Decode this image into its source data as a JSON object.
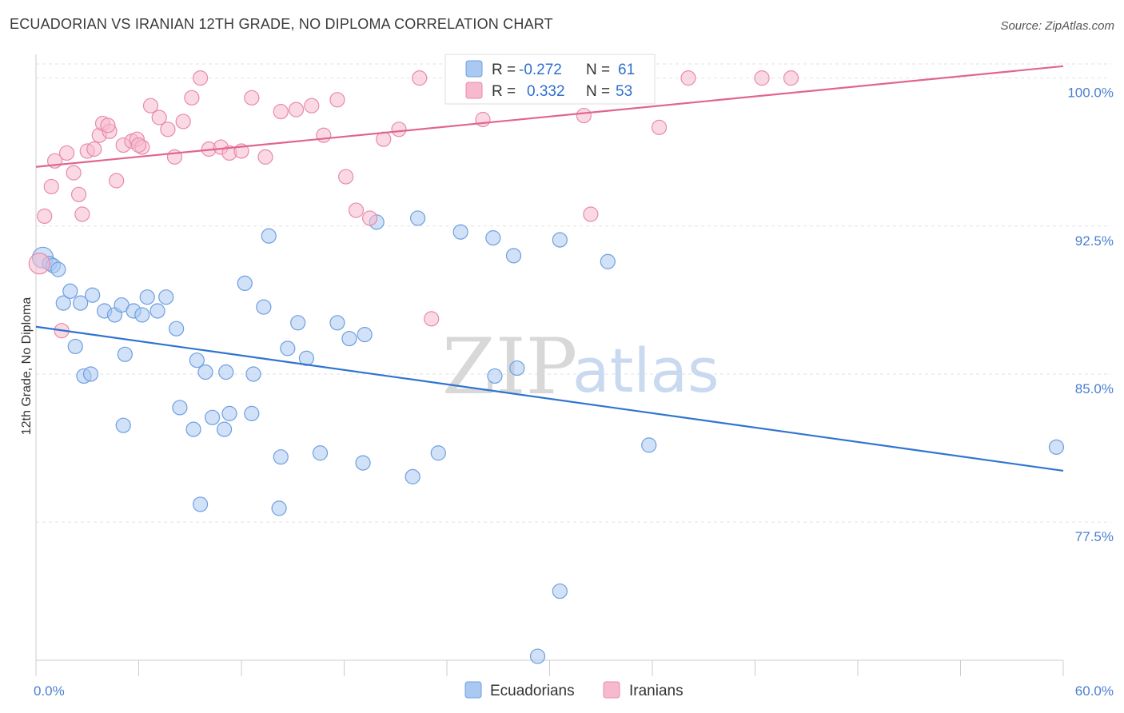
{
  "title": "ECUADORIAN VS IRANIAN 12TH GRADE, NO DIPLOMA CORRELATION CHART",
  "source": "Source: ZipAtlas.com",
  "watermark": {
    "zip": "ZIP",
    "atlas": "atlas"
  },
  "legend": {
    "rows": [
      {
        "r_label": "R =",
        "r_value": "-0.272",
        "n_label": "N =",
        "n_value": "61",
        "color": "#a9c8f2",
        "stroke": "#6f9fe0"
      },
      {
        "r_label": "R =",
        "r_value": "0.332",
        "n_label": "N =",
        "n_value": "53",
        "color": "#f6b9cd",
        "stroke": "#e88aa8"
      }
    ]
  },
  "bottom_legend": [
    {
      "label": "Ecuadorians",
      "color": "#a9c8f2",
      "stroke": "#6f9fe0"
    },
    {
      "label": "Iranians",
      "color": "#f6b9cd",
      "stroke": "#e88aa8"
    }
  ],
  "chart_data": {
    "type": "scatter",
    "title": "ECUADORIAN VS IRANIAN 12TH GRADE, NO DIPLOMA CORRELATION CHART",
    "xlabel": "",
    "ylabel": "12th Grade, No Diploma",
    "xlim": [
      0,
      60
    ],
    "ylim": [
      70.5,
      101.2
    ],
    "x_tick_labels": [
      {
        "value": 0,
        "label": "0.0%"
      },
      {
        "value": 60,
        "label": "60.0%"
      }
    ],
    "y_tick_labels": [
      {
        "value": 100,
        "label": "100.0%"
      },
      {
        "value": 92.5,
        "label": "92.5%"
      },
      {
        "value": 85,
        "label": "85.0%"
      },
      {
        "value": 77.5,
        "label": "77.5%"
      }
    ],
    "grid": true,
    "series": [
      {
        "name": "Ecuadorians",
        "color": "#a9c8f2",
        "stroke": "#6f9fe0",
        "trend_color": "#2f74d0",
        "trend": {
          "x0": 0,
          "y0": 87.4,
          "x1": 60,
          "y1": 80.1
        },
        "points": [
          [
            0.4,
            90.9
          ],
          [
            0.8,
            90.6
          ],
          [
            1.0,
            90.5
          ],
          [
            1.3,
            90.3
          ],
          [
            1.6,
            88.6
          ],
          [
            2.0,
            89.2
          ],
          [
            2.6,
            88.6
          ],
          [
            3.3,
            89.0
          ],
          [
            4.0,
            88.2
          ],
          [
            4.6,
            88.0
          ],
          [
            5.0,
            88.5
          ],
          [
            5.7,
            88.2
          ],
          [
            6.2,
            88.0
          ],
          [
            6.5,
            88.9
          ],
          [
            7.1,
            88.2
          ],
          [
            7.6,
            88.9
          ],
          [
            8.2,
            87.3
          ],
          [
            2.3,
            86.4
          ],
          [
            5.2,
            86.0
          ],
          [
            9.4,
            85.7
          ],
          [
            9.9,
            85.1
          ],
          [
            11.1,
            85.1
          ],
          [
            12.7,
            85.0
          ],
          [
            2.8,
            84.9
          ],
          [
            3.2,
            85.0
          ],
          [
            8.4,
            83.3
          ],
          [
            10.3,
            82.8
          ],
          [
            11.3,
            83.0
          ],
          [
            12.6,
            83.0
          ],
          [
            5.1,
            82.4
          ],
          [
            9.2,
            82.2
          ],
          [
            11.0,
            82.2
          ],
          [
            14.3,
            80.8
          ],
          [
            19.1,
            80.5
          ],
          [
            16.6,
            81.0
          ],
          [
            22.0,
            79.8
          ],
          [
            9.6,
            78.4
          ],
          [
            14.2,
            78.2
          ],
          [
            12.2,
            89.6
          ],
          [
            13.3,
            88.4
          ],
          [
            15.3,
            87.6
          ],
          [
            15.8,
            85.8
          ],
          [
            17.6,
            87.6
          ],
          [
            18.3,
            86.8
          ],
          [
            19.2,
            87.0
          ],
          [
            14.7,
            86.3
          ],
          [
            13.6,
            92.0
          ],
          [
            19.9,
            92.7
          ],
          [
            22.3,
            92.9
          ],
          [
            24.8,
            92.2
          ],
          [
            26.7,
            91.9
          ],
          [
            27.9,
            91.0
          ],
          [
            30.6,
            91.8
          ],
          [
            33.4,
            90.7
          ],
          [
            26.8,
            84.9
          ],
          [
            28.1,
            85.3
          ],
          [
            23.5,
            81.0
          ],
          [
            35.8,
            81.4
          ],
          [
            30.6,
            74.0
          ],
          [
            29.3,
            70.7
          ],
          [
            59.6,
            81.3
          ]
        ]
      },
      {
        "name": "Iranians",
        "color": "#f6b9cd",
        "stroke": "#e88aa8",
        "trend_color": "#e0668f",
        "trend": {
          "x0": 0,
          "y0": 95.5,
          "x1": 60,
          "y1": 100.6
        },
        "points": [
          [
            0.2,
            90.6
          ],
          [
            0.5,
            93.0
          ],
          [
            0.9,
            94.5
          ],
          [
            1.1,
            95.8
          ],
          [
            1.8,
            96.2
          ],
          [
            2.2,
            95.2
          ],
          [
            2.5,
            94.1
          ],
          [
            2.7,
            93.1
          ],
          [
            3.0,
            96.3
          ],
          [
            3.4,
            96.4
          ],
          [
            3.7,
            97.1
          ],
          [
            3.9,
            97.7
          ],
          [
            4.3,
            97.3
          ],
          [
            4.7,
            94.8
          ],
          [
            5.1,
            96.6
          ],
          [
            5.6,
            96.8
          ],
          [
            5.9,
            96.9
          ],
          [
            6.2,
            96.5
          ],
          [
            6.7,
            98.6
          ],
          [
            7.2,
            98.0
          ],
          [
            7.7,
            97.4
          ],
          [
            8.1,
            96.0
          ],
          [
            8.6,
            97.8
          ],
          [
            9.1,
            99.0
          ],
          [
            9.6,
            100.0
          ],
          [
            10.1,
            96.4
          ],
          [
            10.8,
            96.5
          ],
          [
            11.3,
            96.2
          ],
          [
            12.0,
            96.3
          ],
          [
            12.6,
            99.0
          ],
          [
            13.4,
            96.0
          ],
          [
            14.3,
            98.3
          ],
          [
            15.2,
            98.4
          ],
          [
            16.1,
            98.6
          ],
          [
            16.8,
            97.1
          ],
          [
            17.6,
            98.9
          ],
          [
            18.1,
            95.0
          ],
          [
            18.7,
            93.3
          ],
          [
            19.5,
            92.9
          ],
          [
            20.3,
            96.9
          ],
          [
            21.2,
            97.4
          ],
          [
            22.4,
            100.0
          ],
          [
            23.1,
            87.8
          ],
          [
            26.1,
            97.9
          ],
          [
            32.0,
            98.1
          ],
          [
            38.1,
            100.0
          ],
          [
            42.4,
            100.0
          ],
          [
            44.1,
            100.0
          ],
          [
            36.4,
            97.5
          ],
          [
            32.4,
            93.1
          ],
          [
            1.5,
            87.2
          ],
          [
            4.2,
            97.6
          ],
          [
            6.0,
            96.6
          ]
        ]
      }
    ]
  }
}
